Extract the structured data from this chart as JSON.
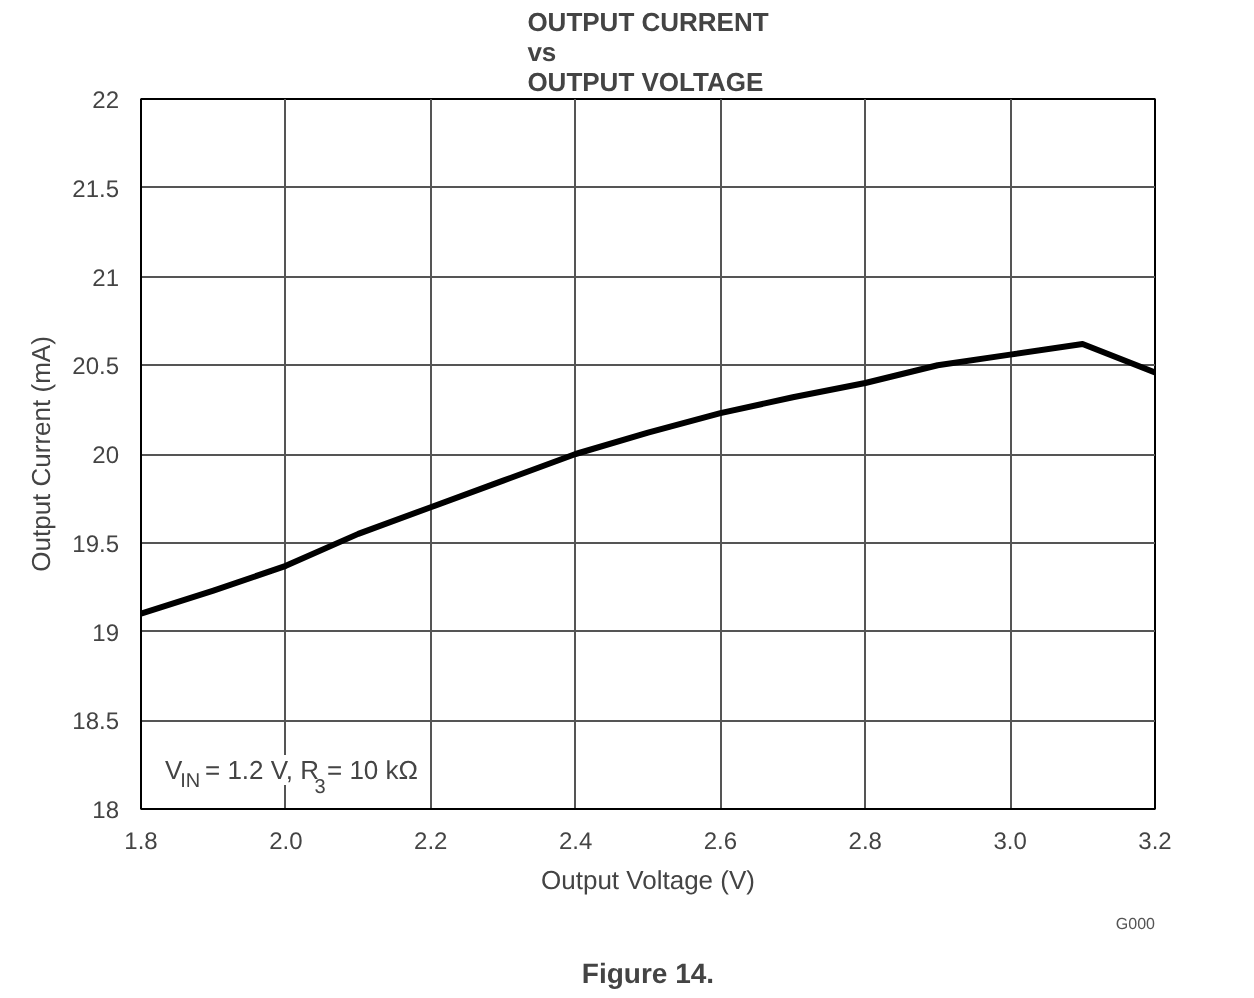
{
  "chart_data": {
    "type": "line",
    "title": "OUTPUT CURRENT\nvs\nOUTPUT VOLTAGE",
    "xlabel": "Output Voltage (V)",
    "ylabel": "Output Current (mA)",
    "x": [
      1.8,
      1.9,
      2.0,
      2.1,
      2.2,
      2.3,
      2.4,
      2.5,
      2.6,
      2.7,
      2.8,
      2.9,
      3.0,
      3.1,
      3.2
    ],
    "series": [
      {
        "color": "#000000",
        "values": [
          19.1,
          19.23,
          19.37,
          19.55,
          19.7,
          19.85,
          20.0,
          20.12,
          20.23,
          20.32,
          20.4,
          20.5,
          20.56,
          20.62,
          20.46
        ]
      }
    ],
    "xlim": [
      1.8,
      3.2
    ],
    "ylim": [
      18,
      22
    ],
    "xticks": [
      1.8,
      {
        "value": 2,
        "label": "2.0"
      },
      2.2,
      2.4,
      2.6,
      2.8,
      {
        "value": 3,
        "label": "3.0"
      },
      3.2
    ],
    "yticks": [
      18,
      18.5,
      19,
      19.5,
      20,
      20.5,
      21,
      21.5,
      22
    ],
    "grid": true,
    "line_style": "solid",
    "marker": "none",
    "annotations": [
      "V$_{IN}$ = 1.2 V, R$_{3}$ = 10 kΩ",
      "G000",
      "Figure 14."
    ]
  }
}
